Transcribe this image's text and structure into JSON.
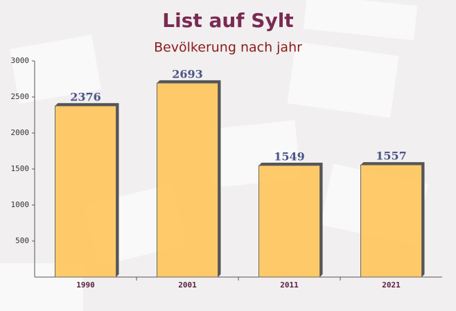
{
  "chart_data": {
    "type": "bar",
    "title": "List auf Sylt",
    "subtitle": "Bevölkerung nach jahr",
    "categories": [
      "1990",
      "2001",
      "2011",
      "2021"
    ],
    "values": [
      2376,
      2693,
      1549,
      1557
    ],
    "color": "#ffc55a",
    "ylim": [
      0,
      3000
    ],
    "yticks": [
      500,
      1000,
      1500,
      2000,
      2500,
      3000
    ]
  }
}
